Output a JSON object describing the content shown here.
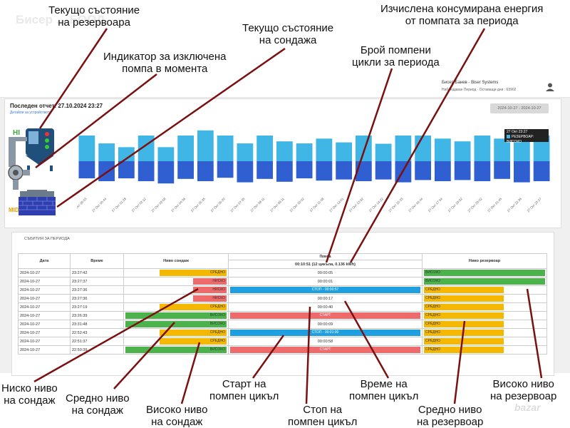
{
  "watermark": "Бисер ... ЕООД",
  "corner_logo": "bazar",
  "header": {
    "user_name": "Бисер Банев - Biser Systems",
    "user_sub": "Наблюдаван Период · Оставащи дни : 63902"
  },
  "report": {
    "last_report": "Последен отчет: 27.10.2024 23:27",
    "link": "Детайли за устройството",
    "date_range": "2024-10-27 - 2024-10-27"
  },
  "indicators": {
    "hi": "HI",
    "mid": "MID"
  },
  "chart_data": {
    "type": "bar",
    "categories": [
      "27 Окт 00:03",
      "27 Окт 00:44",
      "27 Окт 01:28",
      "27 Окт 02:12",
      "27 Окт 02:58",
      "27 Окт 04:36",
      "27 Окт 05:35",
      "27 Окт 06:20",
      "27 Окт 07:35",
      "27 Окт 08:11",
      "27 Окт 09:11",
      "27 Окт 10:02",
      "27 Окт 11:08",
      "27 Окт 12:01",
      "27 Окт 13:02",
      "27 Окт 14:22",
      "27 Окт 15:33",
      "27 Окт 16:44",
      "27 Окт 17:54",
      "27 Окт 19:02",
      "27 Окт 20:02",
      "27 Окт 21:45",
      "27 Окт 22:36",
      "27 Окт 23:27"
    ],
    "series": [
      {
        "name": "Резервоар",
        "values": [
          75,
          52,
          41,
          75,
          41,
          75,
          90,
          75,
          52,
          75,
          58,
          52,
          66,
          55,
          75,
          51,
          75,
          75,
          66,
          58,
          75,
          66,
          75,
          75
        ]
      },
      {
        "name": "Сондаж",
        "values": [
          -60,
          -70,
          -60,
          -70,
          -78,
          -62,
          -70,
          -58,
          -74,
          -62,
          -72,
          -60,
          -68,
          -64,
          -70,
          -64,
          -74,
          -66,
          -70,
          -66,
          -70,
          -62,
          -74,
          -70
        ]
      }
    ],
    "tooltip": {
      "title": "27 Окт 23:27",
      "series": "РЕЗЕРВОАР",
      "value": "ВИСОКО"
    }
  },
  "events": {
    "title": "СЪБИТИЯ ЗА ПЕРИОДА",
    "headers": {
      "date": "Дата",
      "time": "Време",
      "well": "Ниво сондаж",
      "pump": "Помпа",
      "tank": "Ниво резервоар"
    },
    "pump_summary": "00:10:51 (12 цикъла, 0.136 kWh)",
    "rows": [
      {
        "date": "2024-10-27",
        "time": "23:27:42",
        "well": "СРЕДНО",
        "pump": "00:00:05",
        "pump_state": "",
        "tank": "ВИСОКО"
      },
      {
        "date": "2024-10-27",
        "time": "23:27:37",
        "well": "НИСКО",
        "pump": "00:00:01",
        "pump_state": "",
        "tank": "ВИСОКО"
      },
      {
        "date": "2024-10-27",
        "time": "23:27:36",
        "well": "НИСКО",
        "pump": "СТОП - 00:00:57",
        "pump_state": "stop",
        "tank": "СРЕДНО"
      },
      {
        "date": "2024-10-27",
        "time": "23:27:36",
        "well": "НИСКО",
        "pump": "00:00:17",
        "pump_state": "",
        "tank": "СРЕДНО"
      },
      {
        "date": "2024-10-27",
        "time": "23:27:19",
        "well": "СРЕДНО",
        "pump": "00:00:40",
        "pump_state": "",
        "tank": "СРЕДНО"
      },
      {
        "date": "2024-10-27",
        "time": "23:26:39",
        "well": "ВИСОКО",
        "pump": "СТАРТ",
        "pump_state": "start",
        "tank": "СРЕДНО"
      },
      {
        "date": "2024-10-27",
        "time": "23:31:48",
        "well": "ВИСОКО",
        "pump": "00:00:09",
        "pump_state": "",
        "tank": "СРЕДНО"
      },
      {
        "date": "2024-10-27",
        "time": "22:52:43",
        "well": "СРЕДНО",
        "pump": "СТОП - 00:01:00",
        "pump_state": "stop",
        "tank": "СРЕДНО"
      },
      {
        "date": "2024-10-27",
        "time": "22:51:37",
        "well": "СРЕДНО",
        "pump": "00:00:58",
        "pump_state": "",
        "tank": "СРЕДНО"
      },
      {
        "date": "2024-10-27",
        "time": "22:50:39",
        "well": "ВИСОКО",
        "pump": "СТАРТ",
        "pump_state": "start",
        "tank": "СРЕДНО"
      }
    ]
  },
  "annotations": {
    "tank_state": "Текущо състояние\nна резервоара",
    "pump_off": "Индикатор за изключена\nпомпа в момента",
    "well_state": "Текущо състояние\nна сондажа",
    "cycles": "Брой помпени\nцикли за периода",
    "energy": "Изчислена консумирана енергия\nот помпата за периода",
    "well_low": "Ниско ниво\nна сондаж",
    "well_mid": "Средно ниво\nна сондаж",
    "well_high": "Високо ниво\nна сондаж",
    "cycle_start": "Старт на\nпомпен цикъл",
    "cycle_stop": "Стоп на\nпомпен цикъл",
    "cycle_time": "Време на\nпомпен цикъл",
    "tank_mid": "Средно ниво\nна резервоар",
    "tank_high": "Високо ниво\nна резервоар"
  },
  "colors": {
    "tank_bar": "#3fb6e6",
    "well_bar": "#2f5fd0",
    "high": "#4cb34c",
    "mid": "#f5b800",
    "low": "#ef6a6a",
    "stop": "#1e9fe0",
    "start": "#ef6a6a"
  }
}
